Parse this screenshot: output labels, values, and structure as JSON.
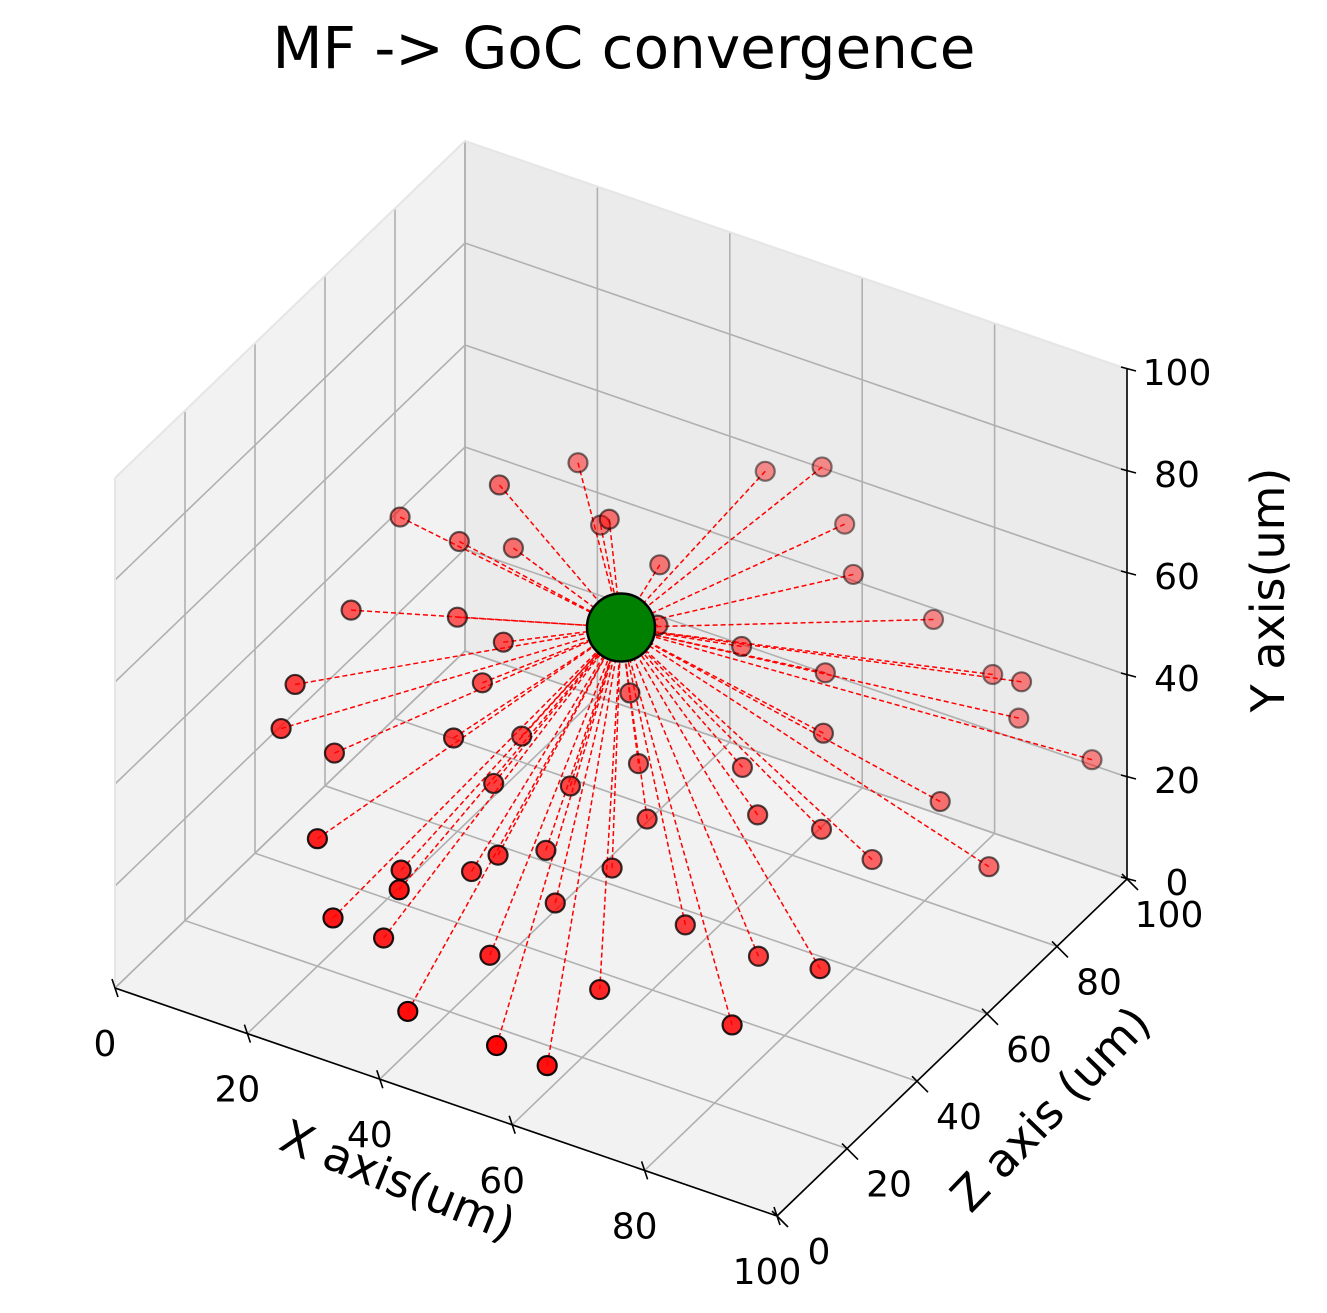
{
  "chart_data": {
    "type": "scatter",
    "projection": "3d",
    "title": "MF -> GoC convergence",
    "xlabel": "X axis(um)",
    "ylabel": "Z axis (um)",
    "zlabel": "Y axis(um)",
    "xlim": [
      0,
      100
    ],
    "ylim": [
      0,
      100
    ],
    "zlim": [
      0,
      100
    ],
    "x_ticks": [
      "0",
      "20",
      "40",
      "60",
      "80",
      "100"
    ],
    "y_ticks": [
      "0",
      "20",
      "40",
      "60",
      "80",
      "100"
    ],
    "z_ticks": [
      "0",
      "20",
      "40",
      "60",
      "80",
      "100"
    ],
    "grid": true,
    "colors": {
      "mf": "#ff0000",
      "goc": "#008000",
      "connection": "#ff0000",
      "pane_left": "#f2f2f2",
      "pane_back": "#ebebeb",
      "pane_floor": "#f2f2f2"
    },
    "goc": {
      "x": 50,
      "y": 50,
      "z": 60
    },
    "mf_points": [
      [
        20,
        72,
        60
      ],
      [
        60,
        95,
        55
      ],
      [
        25,
        85,
        58
      ],
      [
        48,
        95,
        60
      ],
      [
        55,
        98,
        62
      ],
      [
        35,
        75,
        58
      ],
      [
        30,
        82,
        50
      ],
      [
        15,
        70,
        48
      ],
      [
        5,
        72,
        47
      ],
      [
        20,
        76,
        45
      ],
      [
        40,
        80,
        48
      ],
      [
        65,
        88,
        52
      ],
      [
        20,
        60,
        42
      ],
      [
        28,
        58,
        42
      ],
      [
        45,
        70,
        45
      ],
      [
        75,
        92,
        45
      ],
      [
        5,
        58,
        38
      ],
      [
        28,
        52,
        38
      ],
      [
        35,
        50,
        32
      ],
      [
        55,
        75,
        42
      ],
      [
        30,
        40,
        36
      ],
      [
        65,
        80,
        38
      ],
      [
        5,
        42,
        34
      ],
      [
        45,
        62,
        37
      ],
      [
        85,
        90,
        40
      ],
      [
        5,
        38,
        28
      ],
      [
        12,
        40,
        25
      ],
      [
        35,
        42,
        28
      ],
      [
        50,
        55,
        30
      ],
      [
        70,
        70,
        35
      ],
      [
        62,
        62,
        30
      ],
      [
        90,
        88,
        35
      ],
      [
        45,
        45,
        30
      ],
      [
        55,
        48,
        26
      ],
      [
        20,
        20,
        25
      ],
      [
        38,
        30,
        20
      ],
      [
        30,
        25,
        20
      ],
      [
        55,
        38,
        23
      ],
      [
        75,
        60,
        25
      ],
      [
        45,
        38,
        22
      ],
      [
        85,
        75,
        25
      ],
      [
        45,
        22,
        12
      ],
      [
        65,
        40,
        15
      ],
      [
        100,
        90,
        30
      ],
      [
        25,
        15,
        15
      ],
      [
        48,
        35,
        15
      ],
      [
        80,
        65,
        18
      ],
      [
        95,
        70,
        20
      ],
      [
        60,
        25,
        10
      ],
      [
        75,
        42,
        12
      ],
      [
        60,
        10,
        5
      ],
      [
        55,
        5,
        10
      ],
      [
        80,
        25,
        12
      ],
      [
        40,
        8,
        8
      ],
      [
        88,
        35,
        20
      ],
      [
        35,
        15,
        25
      ],
      [
        30,
        20,
        10
      ],
      [
        68,
        55,
        28
      ],
      [
        92,
        85,
        45
      ],
      [
        42,
        30,
        25
      ]
    ]
  }
}
